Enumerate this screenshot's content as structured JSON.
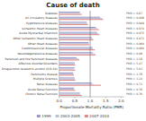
{
  "chart_data": {
    "type": "bar",
    "orientation": "horizontal",
    "title": "Cause of death",
    "xlabel": "Proportionate Mortality Ratio (PMR)",
    "categories": [
      "Diabetes",
      "All circulatory diseases",
      "Hypertensive diseases",
      "Ischaemic Heart diseases",
      "Acute Myocardial Infarction",
      "Other Ischaemic Heart diseases",
      "Other Heart diseases",
      "Cerebrovascular diseases",
      "Neurodegenerative diseases",
      "Parkinson and the Parkinson diseases",
      "Affective disorder/Disorders",
      "Drug/alcohol related to alcohol (ICD-10)",
      "Parkinsons disease",
      "Multiple Sclerosis",
      "Renal diseases",
      "Acute Renal Function",
      "Chronic Renal Function"
    ],
    "series": [
      {
        "name": "1999",
        "color": "#9999cc",
        "values": [
          0.67,
          1.32,
          0.89,
          1.18,
          1.22,
          1.05,
          0.95,
          1.08,
          1.08,
          0.56,
          0.5,
          0.5,
          0.45,
          0.5,
          1.05,
          0.48,
          0.67
        ]
      },
      {
        "name": "2003-2005",
        "color": "#b8c4d8",
        "values": [
          0.67,
          1.38,
          0.9,
          1.22,
          1.25,
          1.08,
          0.96,
          1.08,
          1.15,
          0.62,
          0.5,
          0.47,
          0.46,
          0.5,
          1.1,
          0.48,
          0.67
        ]
      },
      {
        "name": "2007-2010",
        "color": "#e08888",
        "values": [
          0.73,
          1.42,
          0.93,
          1.28,
          1.3,
          1.1,
          0.97,
          1.15,
          1.18,
          0.65,
          0.52,
          0.52,
          0.48,
          0.52,
          1.35,
          0.52,
          0.73
        ]
      }
    ],
    "annotations": [
      "PMR = 0.67",
      "PMR = 0.998",
      "PMR = 0.999",
      "PMR = 0.974",
      "PMR = 0.975",
      "PMR = 0.972",
      "PMR = 0.960",
      "PMR = 0.960",
      "PMR = 0.98",
      "PMR = 2.18",
      "PMR = 5.47",
      "PMR = 5.03",
      "PMR = 2.78",
      "PMR = 1.24",
      "PMR = 0.72",
      "PMR = 0.76",
      "PMR = 0.76"
    ],
    "vline": 1.0,
    "xlim": [
      0.0,
      2.1
    ],
    "xticks": [
      {
        "value": 0.0,
        "label": "0.0"
      },
      0.5,
      {
        "value": 1.0,
        "label": "1.0"
      },
      1.5,
      {
        "value": 2.0,
        "label": "2.0"
      }
    ],
    "grid": false,
    "legend": "bottom"
  }
}
